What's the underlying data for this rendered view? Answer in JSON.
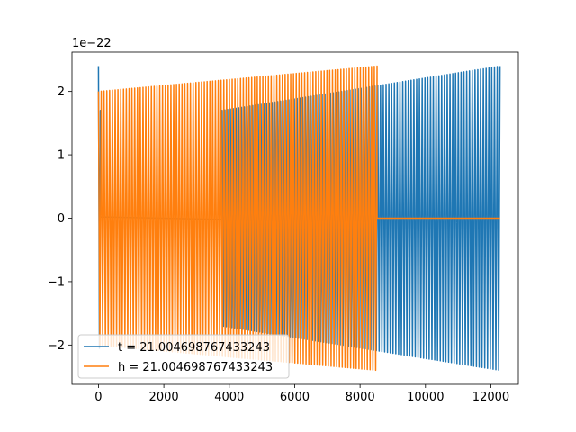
{
  "chart_data": {
    "type": "line",
    "title": "",
    "xlabel": "",
    "ylabel": "",
    "y_offset_label": "1e−22",
    "y_scale": 1e-22,
    "xlim": [
      -810,
      12840
    ],
    "ylim": [
      -2.62,
      2.62
    ],
    "x_ticks": [
      0,
      2000,
      4000,
      6000,
      8000,
      10000,
      12000
    ],
    "x_tick_labels": [
      "0",
      "2000",
      "4000",
      "6000",
      "8000",
      "10000",
      "12000"
    ],
    "y_ticks": [
      -2,
      -1,
      0,
      1,
      2
    ],
    "y_tick_labels": [
      "−2",
      "−1",
      "0",
      "1",
      "2"
    ],
    "grid": false,
    "legend_position": "lower-left",
    "series": [
      {
        "name": "t = 21.004698767433243",
        "color": "#1f77b4",
        "segments": [
          {
            "x_start": 0,
            "x_end": 60,
            "amp_start": 2.4,
            "amp_end": 1.7,
            "cycles": 1
          },
          {
            "x_start": 60,
            "x_end": 3780,
            "amp_start": 0.02,
            "amp_end": 0.02,
            "cycles": 0
          },
          {
            "x_start": 3780,
            "x_end": 12280,
            "amp_start": 1.7,
            "amp_end": 2.4,
            "cycles": 100
          }
        ]
      },
      {
        "name": "h = 21.004698767433243",
        "color": "#ff7f0e",
        "segments": [
          {
            "x_start": 0,
            "x_end": 8520,
            "amp_start": 2.0,
            "amp_end": 2.4,
            "cycles": 100
          },
          {
            "x_start": 8520,
            "x_end": 12280,
            "amp_start": 0.0,
            "amp_end": 0.0,
            "cycles": 0
          }
        ]
      }
    ]
  }
}
